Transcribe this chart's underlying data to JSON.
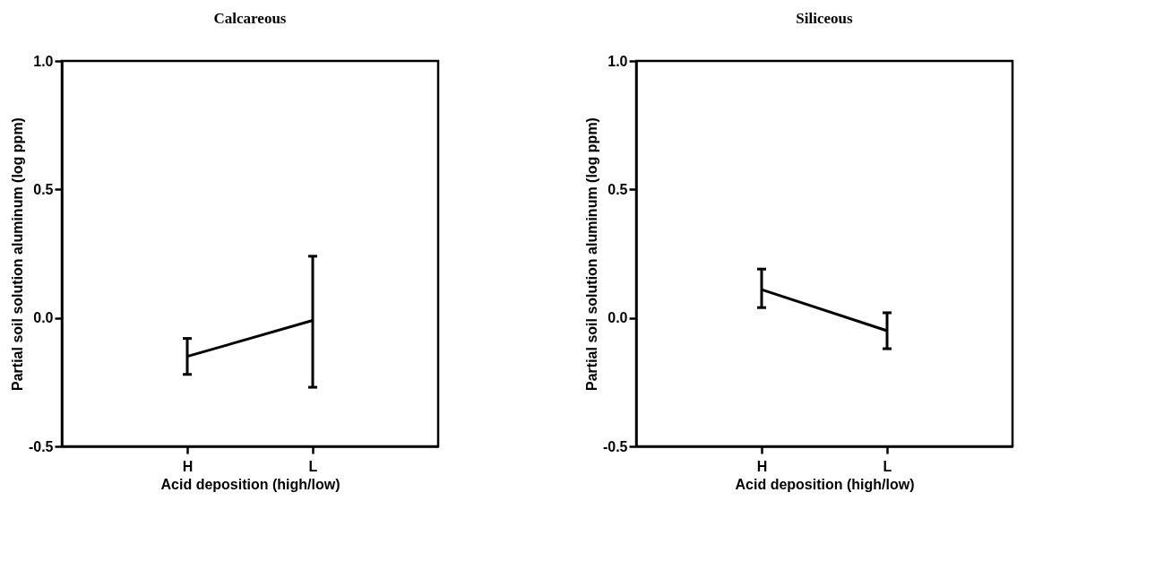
{
  "chart_data": [
    {
      "type": "line",
      "title": "Calcareous",
      "xlabel": "Acid deposition (high/low)",
      "ylabel": "Partial soil solution aluminum (log ppm)",
      "categories": [
        "H",
        "L"
      ],
      "series": [
        {
          "color": "#000000",
          "values": [
            -0.15,
            -0.01
          ],
          "errors": [
            [
              -0.22,
              -0.08
            ],
            [
              -0.27,
              0.24
            ]
          ]
        }
      ],
      "ylim": [
        -0.5,
        1.0
      ],
      "yticks": [
        {
          "value": -0.5,
          "label": "-0.5"
        },
        {
          "value": 0,
          "label": "0.0"
        },
        {
          "value": 0.5,
          "label": "0.5"
        },
        {
          "value": 1,
          "label": "1.0"
        }
      ],
      "marker": "none",
      "line_style": "solid"
    },
    {
      "type": "line",
      "title": "Siliceous",
      "xlabel": "Acid deposition (high/low)",
      "ylabel": "Partial soil solution aluminum (log ppm)",
      "categories": [
        "H",
        "L"
      ],
      "series": [
        {
          "color": "#000000",
          "values": [
            0.11,
            -0.05
          ],
          "errors": [
            [
              0.04,
              0.19
            ],
            [
              -0.12,
              0.02
            ]
          ]
        }
      ],
      "ylim": [
        -0.5,
        1.0
      ],
      "yticks": [
        {
          "value": -0.5,
          "label": "-0.5"
        },
        {
          "value": 0,
          "label": "0.0"
        },
        {
          "value": 0.5,
          "label": "0.5"
        },
        {
          "value": 1,
          "label": "1.0"
        }
      ],
      "marker": "none",
      "line_style": "solid"
    }
  ]
}
